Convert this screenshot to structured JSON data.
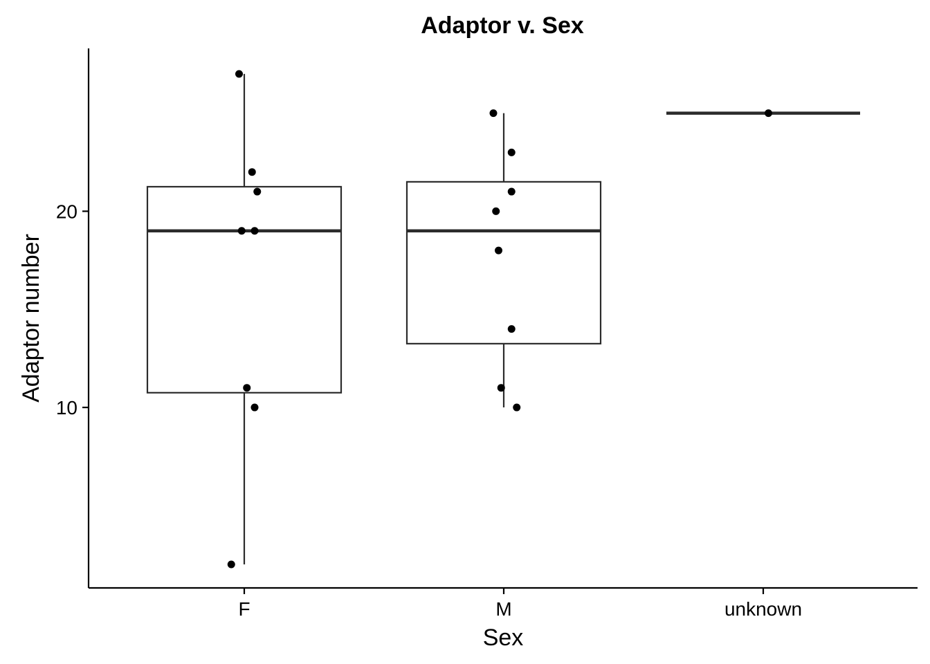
{
  "chart_data": {
    "type": "boxplot",
    "title": "Adaptor v. Sex",
    "xlabel": "Sex",
    "ylabel": "Adaptor number",
    "categories": [
      "F",
      "M",
      "unknown"
    ],
    "ylim": [
      0.8,
      28.3
    ],
    "yticks": [
      10,
      20
    ],
    "grid": false,
    "legend": "none",
    "boxes": [
      {
        "category": "F",
        "whisker_low": 2,
        "q1": 10.75,
        "median": 19,
        "q3": 21.25,
        "whisker_high": 27
      },
      {
        "category": "M",
        "whisker_low": 10,
        "q1": 13.25,
        "median": 19,
        "q3": 21.5,
        "whisker_high": 25
      },
      {
        "category": "unknown",
        "whisker_low": 25,
        "q1": 25,
        "median": 25,
        "q3": 25,
        "whisker_high": 25
      }
    ],
    "points": [
      {
        "category": "F",
        "jitter": -0.02,
        "y": 27
      },
      {
        "category": "F",
        "jitter": 0.03,
        "y": 22
      },
      {
        "category": "F",
        "jitter": 0.05,
        "y": 21
      },
      {
        "category": "F",
        "jitter": -0.01,
        "y": 19
      },
      {
        "category": "F",
        "jitter": 0.04,
        "y": 19
      },
      {
        "category": "F",
        "jitter": 0.01,
        "y": 11
      },
      {
        "category": "F",
        "jitter": 0.04,
        "y": 10
      },
      {
        "category": "F",
        "jitter": -0.05,
        "y": 2
      },
      {
        "category": "M",
        "jitter": -0.04,
        "y": 25
      },
      {
        "category": "M",
        "jitter": 0.03,
        "y": 23
      },
      {
        "category": "M",
        "jitter": 0.03,
        "y": 21
      },
      {
        "category": "M",
        "jitter": -0.03,
        "y": 20
      },
      {
        "category": "M",
        "jitter": -0.02,
        "y": 18
      },
      {
        "category": "M",
        "jitter": 0.03,
        "y": 14
      },
      {
        "category": "M",
        "jitter": -0.01,
        "y": 11
      },
      {
        "category": "M",
        "jitter": 0.05,
        "y": 10
      },
      {
        "category": "unknown",
        "jitter": 0.02,
        "y": 25
      }
    ]
  }
}
